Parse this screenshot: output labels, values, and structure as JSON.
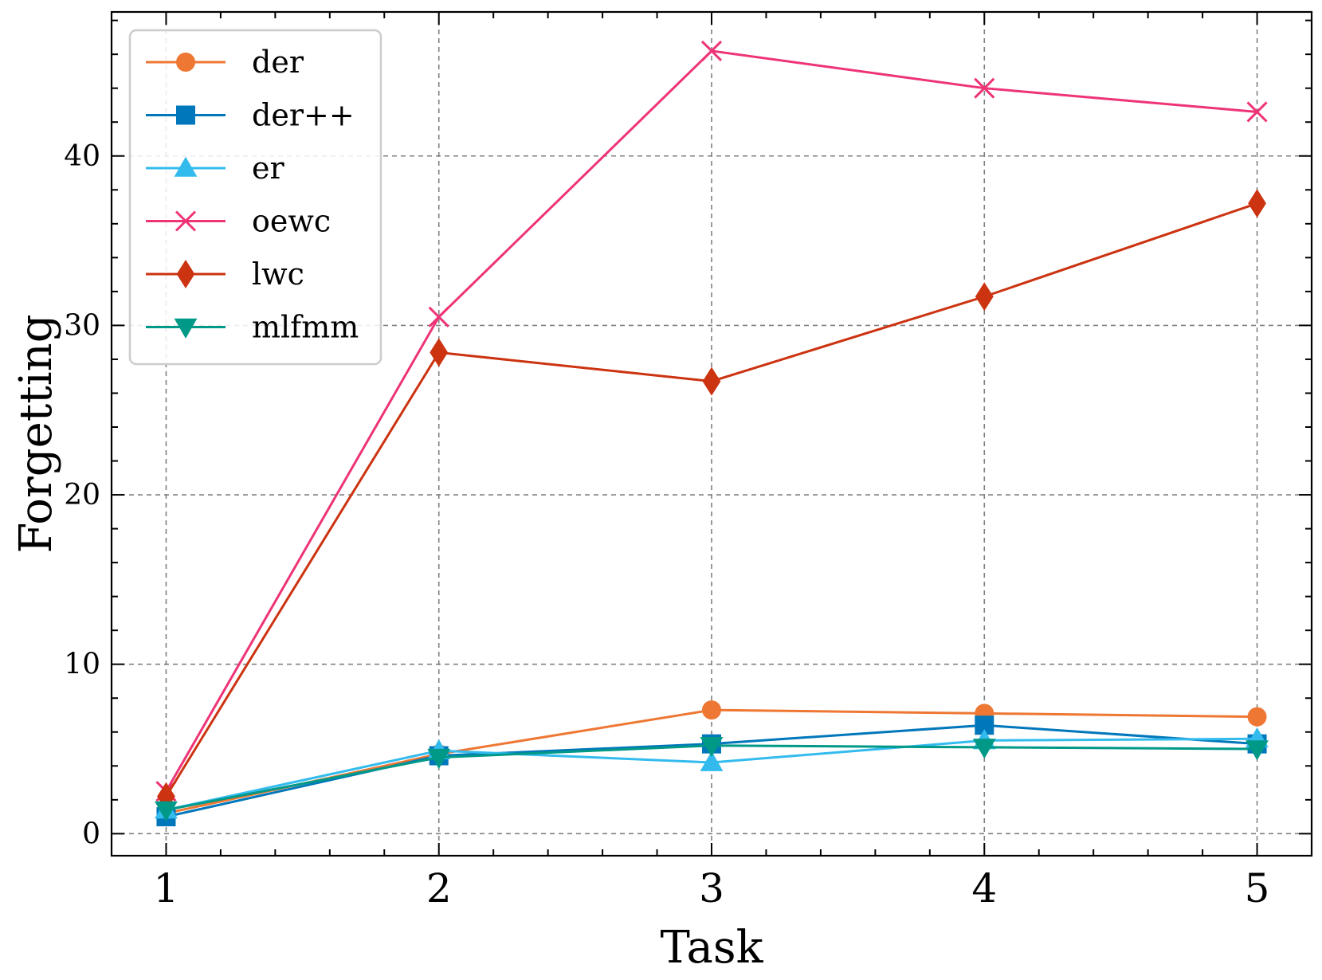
{
  "chart_data": {
    "type": "line",
    "title": "",
    "xlabel": "Task",
    "ylabel": "Forgetting",
    "x": [
      1,
      2,
      3,
      4,
      5
    ],
    "xlim": [
      0.8,
      5.2
    ],
    "ylim": [
      -1.3,
      48.5
    ],
    "xticks": [
      1,
      2,
      3,
      4,
      5
    ],
    "yticks": [
      0,
      10,
      20,
      30,
      40
    ],
    "grid": true,
    "legend_position": "top-left",
    "series": [
      {
        "name": "der",
        "color": "#ee7733",
        "marker": "circle",
        "values": [
          1.2,
          4.7,
          7.3,
          7.1,
          6.9
        ]
      },
      {
        "name": "der++",
        "color": "#0077bb",
        "marker": "square",
        "values": [
          1.0,
          4.6,
          5.3,
          6.4,
          5.3
        ]
      },
      {
        "name": "er",
        "color": "#33bbee",
        "marker": "triangle-up",
        "values": [
          1.4,
          4.9,
          4.2,
          5.5,
          5.6
        ]
      },
      {
        "name": "oewc",
        "color": "#ee3377",
        "marker": "x",
        "values": [
          2.5,
          30.5,
          46.2,
          44.0,
          42.6
        ]
      },
      {
        "name": "lwc",
        "color": "#cc3311",
        "marker": "diamond",
        "values": [
          2.2,
          28.4,
          26.7,
          31.7,
          37.2
        ]
      },
      {
        "name": "mlfmm",
        "color": "#009988",
        "marker": "triangle-down",
        "values": [
          1.4,
          4.5,
          5.2,
          5.1,
          5.0
        ]
      }
    ]
  }
}
